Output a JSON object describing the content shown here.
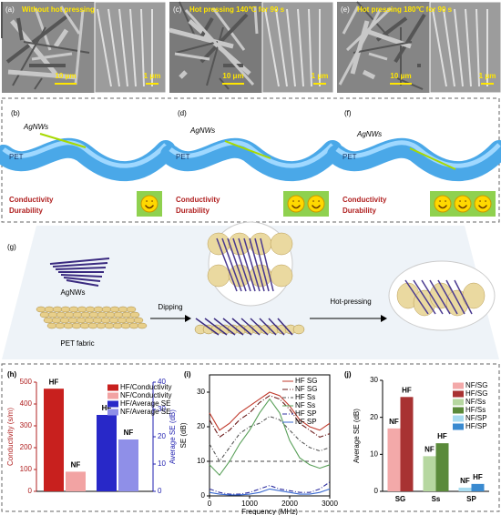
{
  "sem": [
    {
      "letter": "(a)",
      "caption": "Without hot pressing",
      "scale_main": "10 μm",
      "scale_inset": "1 μm"
    },
    {
      "letter": "(c)",
      "caption": "Hot pressing 140℃ for 90 s",
      "scale_main": "10 μm",
      "scale_inset": "1 μm"
    },
    {
      "letter": "(e)",
      "caption": "Hot pressing 180℃ for 90 s",
      "scale_main": "10 μm",
      "scale_inset": "1 μm"
    }
  ],
  "diagrams": [
    {
      "letter": "(b)",
      "wire": "AgNWs",
      "fiber": "PET",
      "props": [
        "Conductivity",
        "Durability"
      ],
      "smileys": 1
    },
    {
      "letter": "(d)",
      "wire": "AgNWs",
      "fiber": "PET",
      "props": [
        "Conductivity",
        "Durability"
      ],
      "smileys": 2
    },
    {
      "letter": "(f)",
      "wire": "AgNWs",
      "fiber": "PET",
      "props": [
        "Conductivity",
        "Durability"
      ],
      "smileys": 3
    }
  ],
  "process": {
    "letter": "(g)",
    "wires": "AgNWs",
    "fabric": "PET fabric",
    "step1": "Dipping",
    "step2": "Hot-pressing"
  },
  "chart_data": [
    {
      "type": "bar",
      "label": "(h)",
      "ylabel": "Conductivity (s/m)",
      "y2label": "Average SE (dB)",
      "ylim": [
        0,
        500
      ],
      "yticks": [
        0,
        100,
        200,
        300,
        400,
        500
      ],
      "y2lim": [
        0,
        40
      ],
      "y2ticks": [
        0,
        10,
        20,
        30,
        40
      ],
      "series": [
        {
          "name": "HF/Conductivity",
          "color": "#c8201e",
          "label": "HF",
          "values": [
            470
          ]
        },
        {
          "name": "NF/Conductivity",
          "color": "#f2a3a3",
          "label": "NF",
          "values": [
            90
          ]
        },
        {
          "name": "HF/Average SE",
          "color": "#2828c8",
          "label": "HF",
          "values": [
            28
          ],
          "axis": "y2"
        },
        {
          "name": "NF/Average SE",
          "color": "#8f8fe8",
          "label": "NF",
          "values": [
            19
          ],
          "axis": "y2"
        }
      ]
    },
    {
      "type": "line",
      "label": "(i)",
      "xlabel": "Frequency (MHz)",
      "ylabel": "SE (dB)",
      "xlim": [
        0,
        3000
      ],
      "xticks": [
        0,
        1000,
        2000,
        3000
      ],
      "ylim": [
        0,
        35
      ],
      "yticks": [
        0,
        10,
        20,
        30
      ],
      "hlines": [
        10
      ],
      "x": [
        0,
        250,
        500,
        750,
        1000,
        1250,
        1500,
        1750,
        2000,
        2250,
        2500,
        2750,
        3000
      ],
      "series": [
        {
          "name": "HF SG",
          "color": "#c0392b",
          "dash": "",
          "values": [
            24,
            19,
            21,
            24,
            26,
            28,
            30,
            29,
            26,
            22,
            20,
            19,
            21
          ]
        },
        {
          "name": "NF SG",
          "color": "#6b1a1a",
          "dash": "6 2 1 2",
          "values": [
            22,
            17,
            19,
            22,
            24,
            27,
            29,
            28,
            25,
            21,
            19,
            17,
            18
          ]
        },
        {
          "name": "HF Ss",
          "color": "#555555",
          "dash": "4 2 1 2",
          "values": [
            15,
            10,
            14,
            18,
            20,
            21,
            23,
            22,
            19,
            16,
            14,
            13,
            14
          ]
        },
        {
          "name": "NF Ss",
          "color": "#5aa05a",
          "dash": "",
          "values": [
            9,
            6,
            10,
            15,
            19,
            24,
            28,
            24,
            16,
            11,
            9,
            8,
            9
          ]
        },
        {
          "name": "HF SP",
          "color": "#3030a0",
          "dash": "5 2 1 2",
          "values": [
            2,
            1,
            0.5,
            0.5,
            1,
            2,
            3,
            2,
            1.5,
            1,
            1,
            2,
            4
          ]
        },
        {
          "name": "NF SP",
          "color": "#3a6ad0",
          "dash": "",
          "values": [
            1,
            0.5,
            0.3,
            0.3,
            0.5,
            1,
            2,
            1.5,
            1,
            0.5,
            0.5,
            1,
            2
          ]
        }
      ]
    },
    {
      "type": "bar",
      "label": "(j)",
      "ylabel": "Average SE (dB)",
      "categories": [
        "SG",
        "Ss",
        "SP"
      ],
      "ylim": [
        0,
        30
      ],
      "yticks": [
        0,
        10,
        20,
        30
      ],
      "series": [
        {
          "name": "NF/SG",
          "color": "#f3a9a9",
          "label": "NF",
          "values": [
            17,
            null,
            null
          ]
        },
        {
          "name": "HF/SG",
          "color": "#a83232",
          "label": "HF",
          "values": [
            25.5,
            null,
            null
          ]
        },
        {
          "name": "NF/Ss",
          "color": "#b6d7a0",
          "label": "NF",
          "values": [
            null,
            9.5,
            null
          ]
        },
        {
          "name": "HF/Ss",
          "color": "#5a8a3a",
          "label": "HF",
          "values": [
            null,
            13,
            null
          ]
        },
        {
          "name": "NF/SP",
          "color": "#a8dcf0",
          "label": "NF",
          "values": [
            null,
            null,
            1
          ]
        },
        {
          "name": "HF/SP",
          "color": "#3a8ad0",
          "label": "HF",
          "values": [
            null,
            null,
            2
          ]
        }
      ]
    }
  ]
}
